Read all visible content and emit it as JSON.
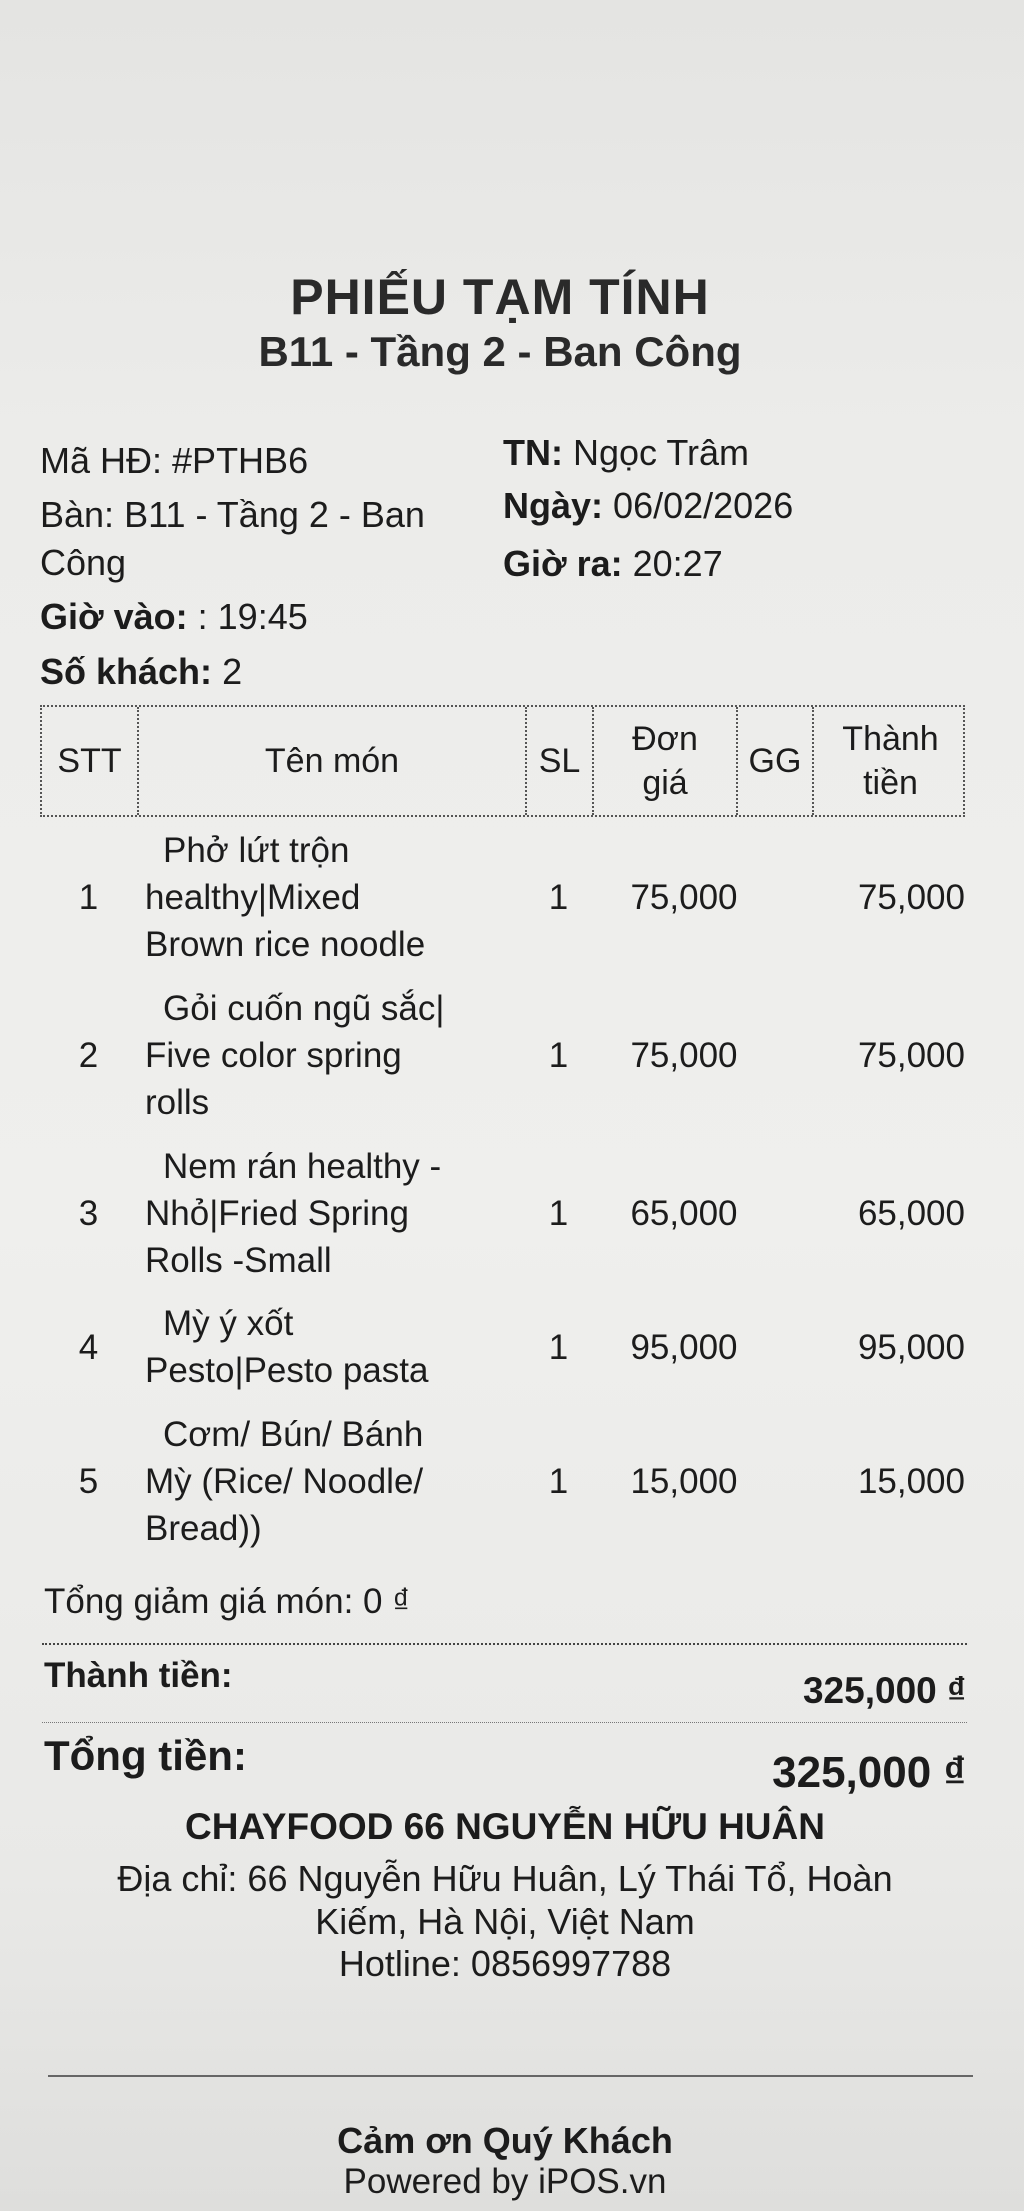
{
  "header": {
    "title": "PHIẾU TẠM TÍNH",
    "subtitle": "B11 - Tầng 2 - Ban Công"
  },
  "info": {
    "invoice_label": "Mã HĐ:",
    "invoice_value": "#PTHB6",
    "table_label": "Bàn:",
    "table_value_line1": "B11 - Tầng 2 - Ban",
    "table_value_line2": "Công",
    "time_in_label": "Giờ vào:",
    "time_in_value": ": 19:45",
    "guests_label": "Số khách:",
    "guests_value": "2",
    "cashier_label": "TN:",
    "cashier_value": "Ngọc Trâm",
    "date_label": "Ngày:",
    "date_value": "06/02/2026",
    "time_out_label": "Giờ ra:",
    "time_out_value": "20:27"
  },
  "table": {
    "headers": {
      "stt": "STT",
      "name": "Tên món",
      "qty": "SL",
      "unit_price_1": "Đơn",
      "unit_price_2": "giá",
      "discount": "GG",
      "total_1": "Thành",
      "total_2": "tiền"
    },
    "rows": [
      {
        "stt": "1",
        "name": [
          "Phở lứt trộn",
          "healthy|Mixed",
          "Brown rice noodle"
        ],
        "qty": "1",
        "price": "75,000",
        "discount": "",
        "total": "75,000"
      },
      {
        "stt": "2",
        "name": [
          "Gỏi cuốn ngũ sắc|",
          "Five color spring",
          "rolls"
        ],
        "qty": "1",
        "price": "75,000",
        "discount": "",
        "total": "75,000"
      },
      {
        "stt": "3",
        "name": [
          "Nem rán healthy -",
          "Nhỏ|Fried Spring",
          "Rolls -Small"
        ],
        "qty": "1",
        "price": "65,000",
        "discount": "",
        "total": "65,000"
      },
      {
        "stt": "4",
        "name": [
          "Mỳ ý xốt",
          "Pesto|Pesto pasta"
        ],
        "qty": "1",
        "price": "95,000",
        "discount": "",
        "total": "95,000"
      },
      {
        "stt": "5",
        "name": [
          "Cơm/ Bún/ Bánh",
          "Mỳ (Rice/ Noodle/",
          "Bread))"
        ],
        "qty": "1",
        "price": "15,000",
        "discount": "",
        "total": "15,000"
      }
    ]
  },
  "summary": {
    "item_discount": "Tổng giảm giá món: 0 ₫",
    "subtotal_label": "Thành tiền:",
    "subtotal_value": "325,000 ₫",
    "grand_total_label": "Tổng tiền:",
    "grand_total_value": "325,000 ₫"
  },
  "footer": {
    "store_name": "CHAYFOOD 66 NGUYỄN HỮU HUÂN",
    "address_line1": "Địa chỉ: 66 Nguyễn Hữu Huân, Lý Thái Tổ, Hoàn",
    "address_line2": "Kiếm, Hà Nội, Việt Nam",
    "hotline": "Hotline: 0856997788",
    "thanks": "Cảm ơn Quý Khách",
    "powered_by": "Powered by iPOS.vn"
  }
}
